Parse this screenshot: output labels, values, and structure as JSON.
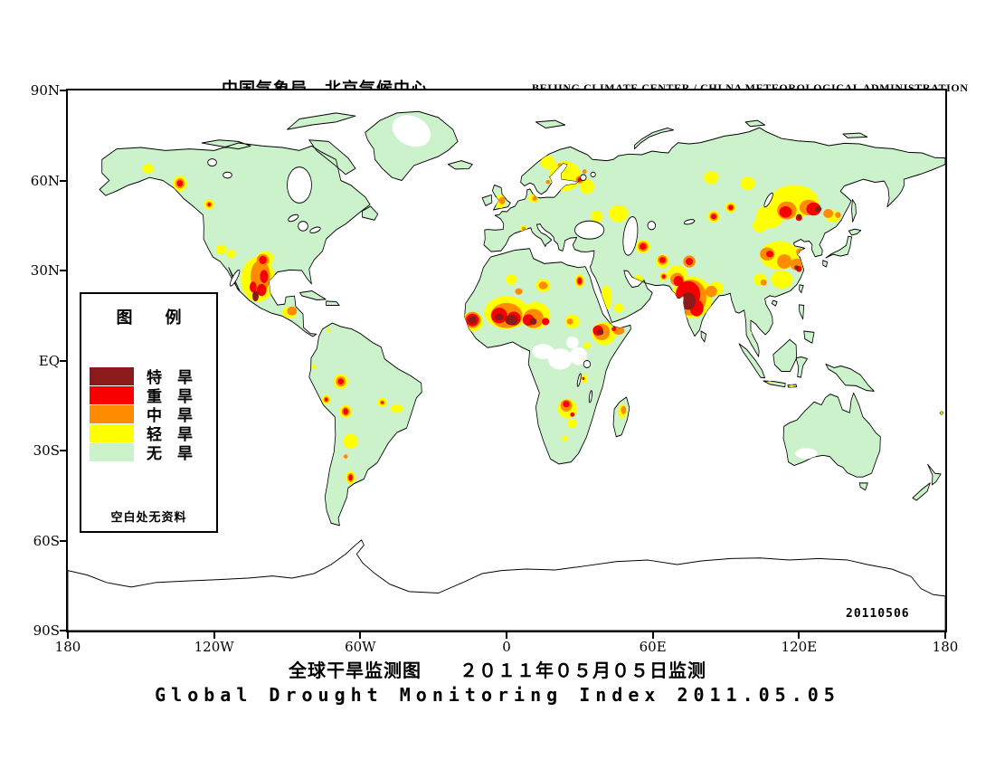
{
  "header": {
    "title_cn": "中国气象局　北京气候中心",
    "title_en": "BEIJING CLIMATE CENTER / CHI NA METEOROLOGICAL ADMINISTRATION"
  },
  "footer": {
    "title_cn": "全球干旱监测图　　２０１１年０５月０５日监测",
    "title_en": "Global Drought Monitoring Index  2011.05.05"
  },
  "legend": {
    "title": "图　　例",
    "items": [
      {
        "label": "特　旱",
        "level": "extreme"
      },
      {
        "label": "重　旱",
        "level": "severe"
      },
      {
        "label": "中　旱",
        "level": "moderate"
      },
      {
        "label": "轻　旱",
        "level": "light"
      },
      {
        "label": "无　旱",
        "level": "none"
      }
    ],
    "note": "空白处无资料"
  },
  "map": {
    "date_stamp": "20110506",
    "x_ticks": [
      "180",
      "120W",
      "60W",
      "0",
      "60E",
      "120E",
      "180"
    ],
    "y_ticks": [
      "90N",
      "60N",
      "30N",
      "EQ",
      "30S",
      "60S",
      "90S"
    ],
    "colors": {
      "none": "#CCF2CC",
      "light": "#FFFF00",
      "moderate": "#FF8C00",
      "severe": "#F80000",
      "extreme": "#8B1A1A",
      "ocean": "#FFFFFF",
      "coastline": "#000000"
    },
    "drought_spots": [
      [
        -147,
        64,
        2.3,
        1.6,
        "light"
      ],
      [
        -134,
        59,
        2.9,
        2.6,
        "light"
      ],
      [
        -122,
        52,
        2.0,
        1.8,
        "light"
      ],
      [
        -117,
        37,
        2.2,
        1.6,
        "light"
      ],
      [
        -113,
        35.5,
        1.9,
        1.4,
        "light"
      ],
      [
        -102,
        27,
        7.0,
        7.5,
        "light"
      ],
      [
        -99,
        34,
        3.5,
        2.5,
        "light"
      ],
      [
        -89,
        16,
        3.0,
        2.0,
        "light"
      ],
      [
        -73,
        10,
        0.8,
        0.5,
        "light"
      ],
      [
        -68,
        -7,
        3,
        2.5,
        "light"
      ],
      [
        -74,
        -13,
        1.8,
        1.6,
        "light"
      ],
      [
        -66,
        -17,
        2.5,
        2.2,
        "light"
      ],
      [
        -64,
        -27,
        3,
        2.5,
        "light"
      ],
      [
        -64,
        -39,
        2,
        2.2,
        "light"
      ],
      [
        -51,
        -14,
        2,
        1.5,
        "light"
      ],
      [
        -45,
        -16,
        2.5,
        1.5,
        "light"
      ],
      [
        -79,
        -2,
        1,
        0.7,
        "light"
      ],
      [
        -2.5,
        53,
        2,
        2.3,
        "light"
      ],
      [
        7,
        44,
        1.5,
        1.1,
        "light"
      ],
      [
        11,
        54,
        2,
        1.5,
        "light"
      ],
      [
        24,
        61.5,
        6.5,
        5,
        "light"
      ],
      [
        17,
        66,
        3,
        2.2,
        "light"
      ],
      [
        33,
        58,
        3,
        2.5,
        "light"
      ],
      [
        37,
        48,
        2.5,
        2,
        "light"
      ],
      [
        46,
        49,
        4,
        2.8,
        "light"
      ],
      [
        0,
        16,
        9,
        5.5,
        "light"
      ],
      [
        12,
        15,
        6,
        4.5,
        "light"
      ],
      [
        -14,
        13,
        4.5,
        3.3,
        "light"
      ],
      [
        15,
        25,
        3,
        2.2,
        "light"
      ],
      [
        2,
        27,
        2.2,
        1.8,
        "light"
      ],
      [
        30,
        26.5,
        2,
        2.2,
        "light"
      ],
      [
        27,
        13,
        3,
        2.3,
        "light"
      ],
      [
        40,
        9,
        5,
        3.8,
        "light"
      ],
      [
        41,
        21,
        2.2,
        4,
        "light"
      ],
      [
        46,
        17.5,
        2,
        1.5,
        "light"
      ],
      [
        32,
        -6,
        1.5,
        1.4,
        "light"
      ],
      [
        33,
        5,
        1.5,
        1.1,
        "light"
      ],
      [
        25,
        -16,
        4,
        3.3,
        "light"
      ],
      [
        27,
        -21,
        2,
        1.5,
        "light"
      ],
      [
        24,
        -26,
        1.2,
        1,
        "light"
      ],
      [
        47.5,
        -17,
        1.8,
        2.3,
        "light"
      ],
      [
        54,
        27,
        2,
        1.5,
        "light"
      ],
      [
        56,
        38,
        3,
        2.3,
        "light"
      ],
      [
        64,
        33,
        2.8,
        2.3,
        "light"
      ],
      [
        64.5,
        28,
        1.8,
        1.4,
        "light"
      ],
      [
        85,
        48,
        2.5,
        2,
        "light"
      ],
      [
        92,
        51,
        2.2,
        1.7,
        "light"
      ],
      [
        84,
        61,
        3,
        2.2,
        "light"
      ],
      [
        99,
        59,
        3,
        2.2,
        "light"
      ],
      [
        118,
        53,
        10,
        5.5,
        "light"
      ],
      [
        108,
        48,
        5.5,
        4,
        "light"
      ],
      [
        104,
        45,
        3,
        2.3,
        "light"
      ],
      [
        134,
        48,
        3,
        2,
        "light"
      ],
      [
        112,
        35,
        8,
        4.8,
        "light"
      ],
      [
        113,
        27,
        4.5,
        3,
        "light"
      ],
      [
        104,
        27,
        2.6,
        2,
        "light"
      ],
      [
        101,
        10,
        0.8,
        1.2,
        "light"
      ],
      [
        76,
        21,
        8.5,
        7,
        "light"
      ],
      [
        70,
        29,
        4,
        2.8,
        "light"
      ],
      [
        86,
        24,
        3,
        2.3,
        "light"
      ],
      [
        117,
        -8.5,
        0.8,
        0.5,
        "light"
      ],
      [
        108,
        -7,
        0.6,
        0.4,
        "light"
      ],
      [
        178.5,
        -17.5,
        0.6,
        0.8,
        "light"
      ],
      [
        -134,
        59,
        1.9,
        1.7,
        "moderate"
      ],
      [
        -122,
        52,
        1.2,
        1.0,
        "moderate"
      ],
      [
        -101,
        28,
        4,
        5.5,
        "moderate"
      ],
      [
        -100,
        33.5,
        2.5,
        2,
        "moderate"
      ],
      [
        -88,
        16.5,
        2,
        1.5,
        "moderate"
      ],
      [
        -68,
        -7,
        2,
        1.7,
        "moderate"
      ],
      [
        -74,
        -13,
        1.1,
        1,
        "moderate"
      ],
      [
        -66,
        -17,
        1.7,
        1.5,
        "moderate"
      ],
      [
        -66,
        -32,
        0.9,
        0.7,
        "moderate"
      ],
      [
        -64,
        -39,
        1.3,
        1.5,
        "moderate"
      ],
      [
        -51,
        -14,
        1,
        0.8,
        "moderate"
      ],
      [
        -1.8,
        53.3,
        1.2,
        1.3,
        "moderate"
      ],
      [
        7,
        44,
        0.8,
        0.6,
        "moderate"
      ],
      [
        11.5,
        54,
        1,
        0.8,
        "moderate"
      ],
      [
        30,
        60.3,
        1.6,
        1.3,
        "moderate"
      ],
      [
        22,
        65,
        1,
        0.8,
        "moderate"
      ],
      [
        32,
        63,
        0.9,
        0.7,
        "moderate"
      ],
      [
        17,
        59.5,
        0.9,
        0.7,
        "moderate"
      ],
      [
        0,
        15,
        6.5,
        4.2,
        "moderate"
      ],
      [
        11,
        14,
        4.2,
        3.2,
        "moderate"
      ],
      [
        -14,
        13.5,
        3.4,
        2.7,
        "moderate"
      ],
      [
        15,
        25,
        1.8,
        1.3,
        "moderate"
      ],
      [
        5,
        23,
        1.5,
        1.1,
        "moderate"
      ],
      [
        30,
        26.5,
        1.4,
        1.6,
        "moderate"
      ],
      [
        26,
        13,
        1.3,
        1,
        "moderate"
      ],
      [
        39,
        9.5,
        3.4,
        2.7,
        "moderate"
      ],
      [
        46,
        10,
        2.4,
        1.4,
        "moderate"
      ],
      [
        48,
        -16.5,
        1.1,
        1.4,
        "moderate"
      ],
      [
        24.5,
        -15,
        2.4,
        2,
        "moderate"
      ],
      [
        56,
        38,
        2.1,
        1.7,
        "moderate"
      ],
      [
        64,
        33.5,
        2,
        1.6,
        "moderate"
      ],
      [
        64.5,
        28,
        1.2,
        1,
        "moderate"
      ],
      [
        85,
        48,
        1.7,
        1.4,
        "moderate"
      ],
      [
        92,
        51,
        1.5,
        1.2,
        "moderate"
      ],
      [
        115,
        50,
        4,
        3,
        "moderate"
      ],
      [
        124,
        51,
        3.8,
        2.6,
        "moderate"
      ],
      [
        132,
        49,
        2,
        1.5,
        "moderate"
      ],
      [
        136,
        48.5,
        1.2,
        1,
        "moderate"
      ],
      [
        107,
        35.5,
        3,
        2.2,
        "moderate"
      ],
      [
        114,
        33,
        3,
        2.4,
        "moderate"
      ],
      [
        119,
        32,
        2.5,
        2,
        "moderate"
      ],
      [
        120.5,
        36.2,
        1.7,
        1.2,
        "moderate"
      ],
      [
        105.5,
        26,
        1.3,
        1,
        "moderate"
      ],
      [
        75.5,
        21,
        6.5,
        6,
        "moderate"
      ],
      [
        70,
        27,
        2.8,
        2.2,
        "moderate"
      ],
      [
        84,
        23,
        2.4,
        1.9,
        "moderate"
      ],
      [
        75,
        33,
        2.5,
        2,
        "moderate"
      ],
      [
        -134,
        59,
        1.2,
        1.1,
        "severe"
      ],
      [
        -122,
        52,
        0.6,
        0.55,
        "severe"
      ],
      [
        -100,
        33.5,
        1.6,
        1.4,
        "severe"
      ],
      [
        -99.5,
        28,
        1.7,
        2.2,
        "severe"
      ],
      [
        -100.5,
        23.5,
        2,
        2,
        "severe"
      ],
      [
        -104,
        24.5,
        1.4,
        1.8,
        "severe"
      ],
      [
        -68,
        -7,
        1.2,
        1,
        "severe"
      ],
      [
        -74,
        -13,
        0.65,
        0.6,
        "severe"
      ],
      [
        -66,
        -17,
        1,
        1.1,
        "severe"
      ],
      [
        -64,
        -39,
        0.8,
        1,
        "severe"
      ],
      [
        -51,
        -14,
        0.5,
        0.4,
        "severe"
      ],
      [
        30,
        60.3,
        0.9,
        0.7,
        "severe"
      ],
      [
        -3,
        15,
        3.3,
        2.6,
        "severe"
      ],
      [
        3,
        14,
        2.8,
        2.3,
        "severe"
      ],
      [
        9,
        13.5,
        2.4,
        1.9,
        "severe"
      ],
      [
        16,
        13,
        1.5,
        1.2,
        "severe"
      ],
      [
        -14,
        13.5,
        2.6,
        2.1,
        "severe"
      ],
      [
        30,
        26.5,
        0.9,
        1.1,
        "severe"
      ],
      [
        37.5,
        10,
        2.1,
        1.7,
        "severe"
      ],
      [
        44,
        10.5,
        0.9,
        0.7,
        "severe"
      ],
      [
        31.5,
        -6,
        0.55,
        0.5,
        "severe"
      ],
      [
        24.5,
        -14.5,
        1.4,
        1.1,
        "severe"
      ],
      [
        27,
        -18,
        0.9,
        0.75,
        "severe"
      ],
      [
        56,
        38,
        1.4,
        1.1,
        "severe"
      ],
      [
        64,
        33.5,
        1.3,
        1,
        "severe"
      ],
      [
        64.5,
        28,
        0.7,
        0.6,
        "severe"
      ],
      [
        75,
        33,
        1.5,
        1.2,
        "severe"
      ],
      [
        85,
        48,
        1.1,
        0.9,
        "severe"
      ],
      [
        92,
        51,
        0.95,
        0.8,
        "severe"
      ],
      [
        114.5,
        49.5,
        2.6,
        1.9,
        "severe"
      ],
      [
        126,
        50.5,
        3,
        2.2,
        "severe"
      ],
      [
        120,
        47.5,
        1.3,
        1,
        "severe"
      ],
      [
        108,
        35.5,
        1.5,
        1.1,
        "severe"
      ],
      [
        120,
        30.5,
        1.2,
        1,
        "severe"
      ],
      [
        74.5,
        22,
        5,
        4.5,
        "severe"
      ],
      [
        78,
        17.5,
        2.8,
        2.8,
        "severe"
      ],
      [
        70.5,
        26.5,
        2,
        1.7,
        "severe"
      ],
      [
        2,
        13.5,
        2.6,
        1.7,
        "extreme"
      ],
      [
        -3,
        14.5,
        1.7,
        1.1,
        "extreme"
      ],
      [
        11,
        13,
        1.4,
        1.1,
        "extreme"
      ],
      [
        -14,
        13.5,
        1.6,
        1.3,
        "extreme"
      ],
      [
        74.5,
        19.8,
        3.1,
        2.9,
        "extreme"
      ],
      [
        120,
        48,
        1.1,
        0.8,
        "extreme"
      ],
      [
        128,
        50.5,
        1.3,
        0.9,
        "extreme"
      ],
      [
        38.5,
        9.5,
        1.3,
        1,
        "extreme"
      ],
      [
        -103,
        21.5,
        1.3,
        1.8,
        "extreme"
      ],
      [
        119,
        31,
        0.9,
        0.7,
        "extreme"
      ]
    ]
  }
}
